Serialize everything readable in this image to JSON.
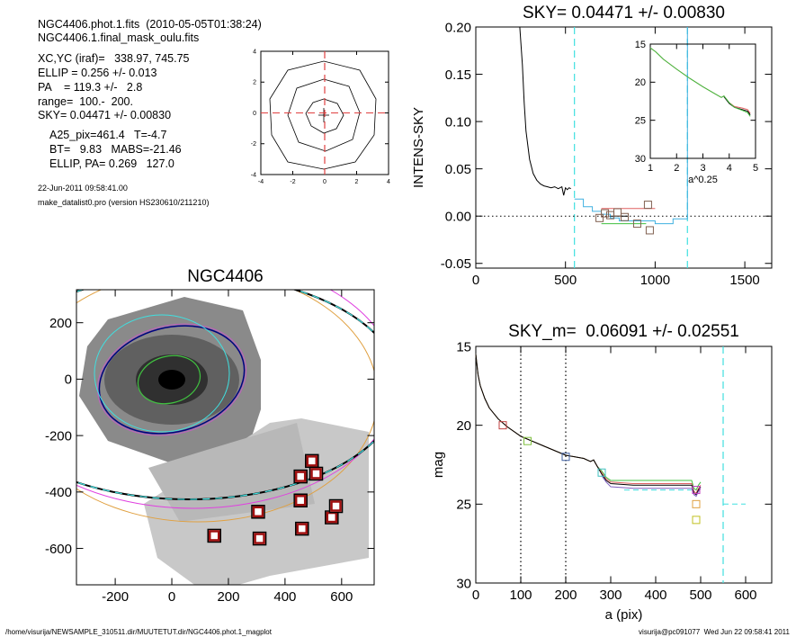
{
  "info": {
    "lines": [
      "NGC4406.phot.1.fits  (2010-05-05T01:38:24)",
      "NGC4406.1.final_mask_oulu.fits",
      "XC,YC (iraf)=   338.97, 745.75",
      "ELLIP = 0.256 +/- 0.013",
      "PA    = 119.3 +/-   2.8",
      "range=  100.-  200.",
      "SKY= 0.04471 +/- 0.00830",
      "A25_pix=461.4   T=-4.7",
      "BT=   9.83   MABS=-21.46",
      "ELLIP, PA= 0.269   127.0",
      "22-Jun-2011 09:58:41.00",
      "make_datalist0.pro (version HS230610/211210)"
    ],
    "footer_left": "/home/visurija/NEWSAMPLE_310511.dir/MUUTETUT.dir/NGC4406.phot.1_magplot",
    "footer_right": "visurija@pc091077  Wed Jun 22 09:58:41 2011"
  },
  "chart_data": [
    {
      "type": "contour",
      "xlim": [
        -4,
        4
      ],
      "ylim": [
        -4,
        4
      ],
      "xticks": [
        -4,
        -2,
        0,
        2,
        4
      ],
      "yticks": [
        -4,
        -2,
        0,
        2,
        4
      ],
      "vlines": [
        {
          "x": 0,
          "color": "#e04040",
          "style": "dashed"
        }
      ],
      "hlines": [
        {
          "y": 0,
          "color": "#e04040",
          "style": "dashed"
        }
      ],
      "series": []
    },
    {
      "type": "line",
      "title": "SKY= 0.04471 +/- 0.00830",
      "y_label": "INTENS-SKY",
      "xlim": [
        0,
        1650
      ],
      "ylim": [
        -0.055,
        0.2
      ],
      "xticks": [
        0,
        500,
        1000,
        1500
      ],
      "yticks": [
        -0.05,
        {
          "value": 0,
          "label": "0.00"
        },
        0.05,
        {
          "value": 0.1,
          "label": "0.10"
        },
        0.15,
        {
          "value": 0.2,
          "label": "0.20"
        }
      ],
      "vlines": [
        {
          "x": 550,
          "color": "#40e0e0",
          "style": "dashed"
        },
        {
          "x": 1180,
          "color": "#40e0e0",
          "style": "dashed"
        }
      ],
      "hlines": [
        {
          "y": 0,
          "color": "#000000",
          "style": "dotted"
        }
      ],
      "series": [
        {
          "color": "#000000",
          "x": [
            245,
            260,
            270,
            280,
            300,
            320,
            340,
            360,
            380,
            400,
            420,
            440,
            460,
            480,
            490,
            500,
            510,
            520,
            530
          ],
          "values": [
            0.2,
            0.16,
            0.12,
            0.09,
            0.06,
            0.045,
            0.038,
            0.034,
            0.032,
            0.031,
            0.03,
            0.031,
            0.029,
            0.031,
            0.022,
            0.03,
            0.028,
            0.03,
            0.029
          ]
        },
        {
          "color": "#40b0e0",
          "x": [
            550,
            600,
            600,
            650,
            650,
            700,
            700,
            750,
            750,
            800,
            800,
            1000,
            1000,
            1100,
            1100,
            1180,
            1180
          ],
          "values": [
            0.018,
            0.018,
            0.01,
            0.01,
            0.005,
            0.005,
            0.002,
            0.002,
            -0.002,
            -0.002,
            -0.005,
            -0.005,
            -0.008,
            -0.008,
            -0.003,
            -0.003,
            0.2
          ]
        },
        {
          "color": "#e06060",
          "x": [
            700,
            1000
          ],
          "values": [
            0.008,
            0.008
          ]
        },
        {
          "color": "#40c040",
          "x": [
            700,
            950
          ],
          "values": [
            -0.008,
            -0.008
          ]
        },
        {
          "color": "#000000",
          "x": [
            750,
            850
          ],
          "values": [
            0,
            0
          ]
        },
        {
          "color": "#806050",
          "marker": "square",
          "x": [
            690,
            720,
            750,
            790,
            830,
            900,
            960,
            970
          ],
          "values": [
            -0.002,
            0.003,
            0.001,
            0.004,
            -0.001,
            -0.008,
            0.012,
            -0.015
          ]
        }
      ]
    },
    {
      "type": "inset",
      "x_label": "a^0.25",
      "xlim": [
        1,
        5
      ],
      "ylim": [
        15,
        30
      ],
      "y_inverted": true,
      "xticks": [
        1,
        2,
        3,
        4,
        5
      ],
      "yticks": [
        15,
        20,
        25,
        30
      ],
      "vlines": [],
      "hlines": [],
      "series": [
        {
          "color": "#e06060",
          "x": [
            1,
            1.2,
            1.5,
            2,
            2.5,
            3,
            3.5,
            3.7,
            3.8,
            4,
            4.2,
            4.5,
            4.7,
            4.8
          ],
          "values": [
            15.5,
            16,
            17,
            18.3,
            19.5,
            20.6,
            21.6,
            22,
            21.8,
            22.7,
            23.2,
            23.4,
            23.6,
            24.1
          ]
        },
        {
          "color": "#000000",
          "x": [
            3.8,
            4,
            4.2,
            4.5,
            4.7,
            4.8
          ],
          "values": [
            21.9,
            22.8,
            23.3,
            23.6,
            23.8,
            24.3
          ]
        },
        {
          "color": "#40c040",
          "x": [
            1,
            1.2,
            1.5,
            2,
            2.5,
            3,
            3.5,
            3.7,
            3.8,
            4,
            4.2,
            4.5,
            4.7,
            4.8
          ],
          "values": [
            15.5,
            16,
            17,
            18.3,
            19.5,
            20.6,
            21.6,
            22,
            21.8,
            22.7,
            23.3,
            23.7,
            24,
            24.5
          ]
        }
      ]
    },
    {
      "type": "image",
      "title": "NGC4406",
      "xlim": [
        -337,
        715
      ],
      "ylim": [
        -729,
        317
      ],
      "xticks": [
        -200,
        0,
        200,
        400,
        600
      ],
      "yticks": [
        200,
        0,
        -200,
        -400,
        -600
      ],
      "vlines": [],
      "hlines": [],
      "series": [
        {
          "color": "#a01010",
          "marker": "box",
          "x": [
            150,
            305,
            310,
            455,
            455,
            460,
            495,
            510,
            565,
            580
          ],
          "values": [
            -555,
            -470,
            -565,
            -345,
            -430,
            -530,
            -290,
            -335,
            -490,
            -450
          ]
        }
      ]
    },
    {
      "type": "line",
      "title": "SKY_m=  0.06091 +/- 0.02551",
      "x_label": "a (pix)",
      "y_label": "mag",
      "xlim": [
        0,
        658
      ],
      "ylim": [
        15,
        30
      ],
      "y_inverted": true,
      "xticks": [
        0,
        100,
        200,
        300,
        400,
        500,
        600
      ],
      "yticks": [
        15,
        20,
        25,
        30
      ],
      "vlines": [
        {
          "x": 100,
          "color": "#000000",
          "style": "dotted"
        },
        {
          "x": 200,
          "color": "#000000",
          "style": "dotted"
        },
        {
          "x": 550,
          "color": "#40e0e0",
          "style": "dashed"
        }
      ],
      "hlines": [],
      "series": [
        {
          "color": "#40e0e0",
          "dash": true,
          "x": [
            330,
            480
          ],
          "values": [
            24.1,
            24.1
          ]
        },
        {
          "color": "#40e0e0",
          "dash": true,
          "x": [
            550,
            600
          ],
          "values": [
            25,
            25
          ]
        },
        {
          "color": "#40c040",
          "x": [
            0,
            5,
            10,
            20,
            30,
            50,
            70,
            100,
            150,
            200,
            240,
            255,
            262,
            270,
            280,
            290,
            300,
            350,
            400,
            480,
            485,
            490,
            495,
            500
          ],
          "values": [
            15.5,
            16.8,
            17.5,
            18.3,
            18.9,
            19.6,
            20.1,
            20.7,
            21.3,
            21.9,
            22.1,
            22.3,
            22.2,
            22.6,
            22.9,
            23.3,
            23.5,
            23.5,
            23.5,
            23.5,
            24,
            24.1,
            23.8,
            23.6
          ]
        },
        {
          "color": "#e06060",
          "x": [
            0,
            5,
            10,
            20,
            30,
            50,
            70,
            100,
            150,
            200,
            240,
            255,
            262,
            270,
            280,
            290,
            300,
            350,
            400,
            480,
            485,
            490,
            495,
            500
          ],
          "values": [
            15.5,
            16.8,
            17.5,
            18.3,
            18.9,
            19.6,
            20.1,
            20.7,
            21.3,
            21.9,
            22.1,
            22.3,
            22.2,
            22.6,
            23,
            23.4,
            23.6,
            23.7,
            23.7,
            23.7,
            24.2,
            24.3,
            24,
            23.8
          ]
        },
        {
          "color": "#000000",
          "x": [
            0,
            5,
            10,
            20,
            30,
            50,
            70,
            100,
            150,
            200,
            240,
            255,
            262,
            270,
            280,
            290,
            300,
            350,
            400,
            480,
            485,
            490,
            495,
            500
          ],
          "values": [
            15.5,
            16.8,
            17.5,
            18.3,
            18.9,
            19.6,
            20.1,
            20.7,
            21.3,
            21.9,
            22.1,
            22.3,
            22.2,
            22.6,
            23.1,
            23.5,
            23.7,
            23.8,
            23.8,
            23.8,
            24.3,
            24.4,
            24.1,
            23.9
          ]
        },
        {
          "color": "#8060c0",
          "x": [
            280,
            290,
            300,
            350,
            400,
            480,
            485,
            490,
            495,
            500
          ],
          "values": [
            23.2,
            23.6,
            23.9,
            24,
            24,
            24,
            24.4,
            24.5,
            24.2,
            24
          ]
        },
        {
          "color": "#c04040",
          "marker": "square",
          "x": [
            60
          ],
          "values": [
            20
          ]
        },
        {
          "color": "#80c040",
          "marker": "square",
          "x": [
            115
          ],
          "values": [
            21
          ]
        },
        {
          "color": "#4060a0",
          "marker": "square",
          "x": [
            200
          ],
          "values": [
            22
          ]
        },
        {
          "color": "#40c0c0",
          "marker": "square",
          "x": [
            280
          ],
          "values": [
            23
          ]
        },
        {
          "color": "#c040c0",
          "marker": "square",
          "x": [
            490
          ],
          "values": [
            24.1
          ]
        },
        {
          "color": "#e0a040",
          "marker": "square",
          "x": [
            490
          ],
          "values": [
            25
          ]
        },
        {
          "color": "#c0c020",
          "marker": "square",
          "x": [
            490
          ],
          "values": [
            26
          ]
        }
      ]
    }
  ]
}
